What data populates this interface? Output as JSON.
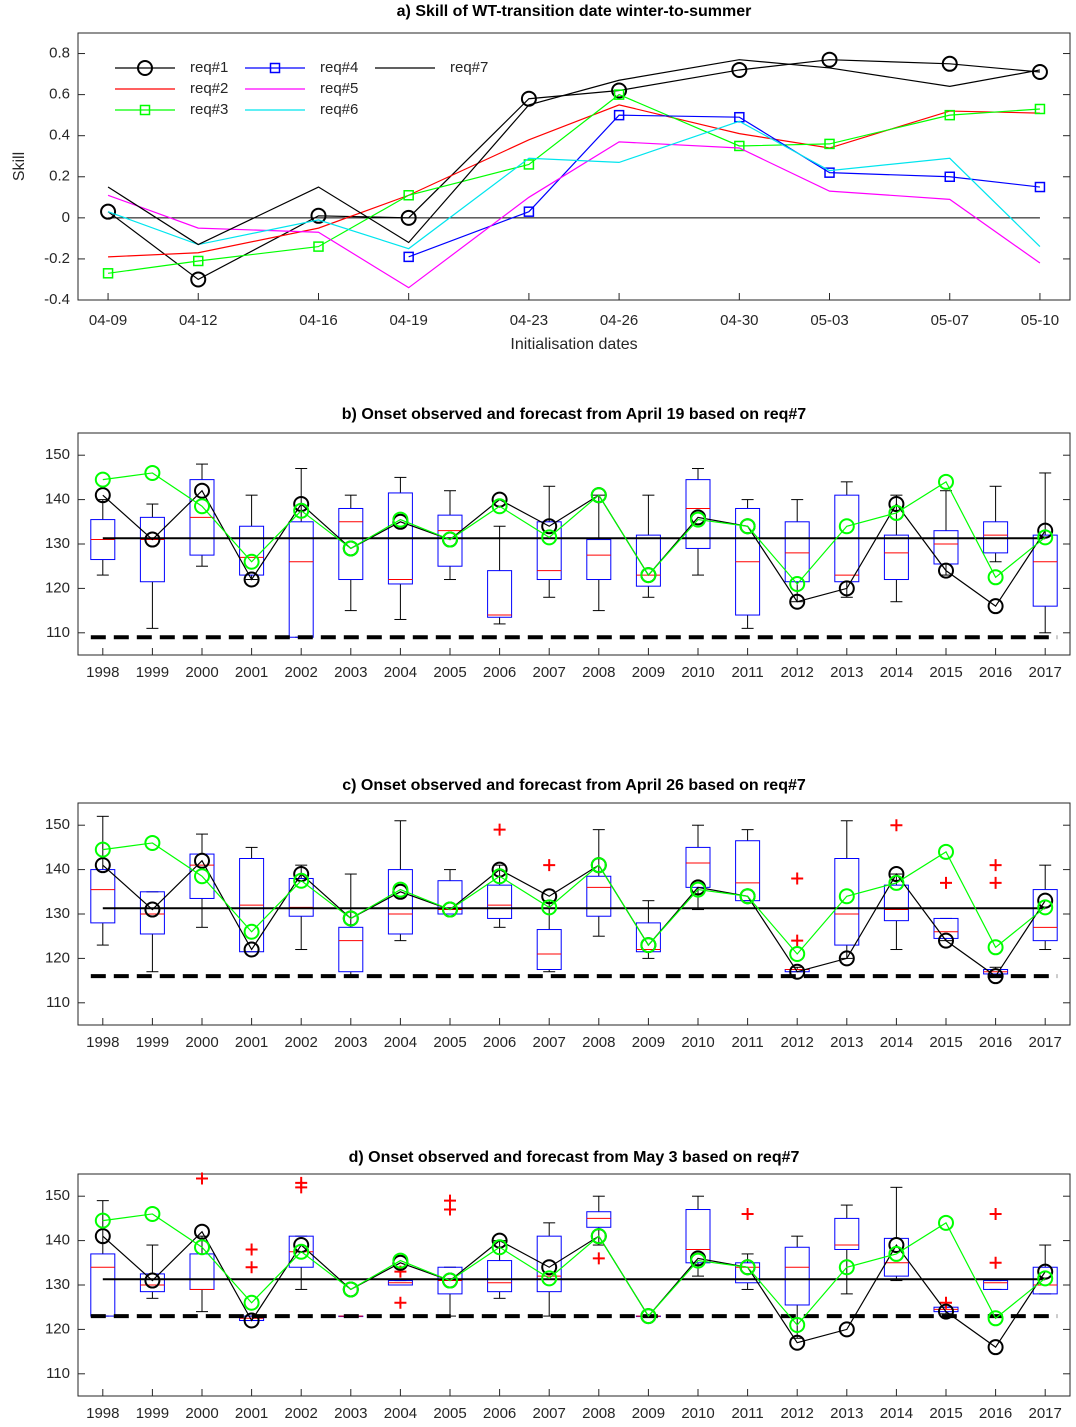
{
  "chart_data": [
    {
      "type": "line",
      "title": "a) Skill of WT-transition date winter-to-summer",
      "xlabel": "Initialisation dates",
      "ylabel": "Skill",
      "x": [
        "04-09",
        "04-12",
        "04-16",
        "04-19",
        "04-23",
        "04-26",
        "04-30",
        "05-03",
        "05-07",
        "05-10"
      ],
      "ylim": [
        -0.4,
        0.9
      ],
      "yticks": [
        -0.4,
        -0.2,
        0,
        0.2,
        0.4,
        0.6,
        0.8
      ],
      "grid": false,
      "legend": "upper left",
      "reference_line": 0,
      "series": [
        {
          "name": "req#1",
          "color": "#000000",
          "marker": "o",
          "values": [
            0.03,
            -0.3,
            0.01,
            0.0,
            0.58,
            0.62,
            0.72,
            0.77,
            0.75,
            0.71
          ]
        },
        {
          "name": "req#2",
          "color": "#ff0000",
          "marker": "none",
          "values": [
            -0.19,
            -0.17,
            -0.05,
            0.11,
            0.38,
            0.55,
            0.41,
            0.34,
            0.52,
            0.51
          ]
        },
        {
          "name": "req#3",
          "color": "#00ff00",
          "marker": "s",
          "values": [
            -0.27,
            -0.21,
            -0.14,
            0.11,
            0.26,
            0.6,
            0.35,
            0.36,
            0.5,
            0.53
          ]
        },
        {
          "name": "req#4",
          "color": "#0000ff",
          "marker": "s",
          "values": [
            null,
            null,
            null,
            -0.19,
            0.03,
            0.5,
            0.49,
            0.22,
            0.2,
            0.15
          ]
        },
        {
          "name": "req#5",
          "color": "#ff00ff",
          "marker": "none",
          "values": [
            0.11,
            -0.05,
            -0.07,
            -0.34,
            0.1,
            0.37,
            0.34,
            0.13,
            0.09,
            -0.22
          ]
        },
        {
          "name": "req#6",
          "color": "#00e5ee",
          "marker": "none",
          "values": [
            0.03,
            -0.13,
            -0.01,
            -0.15,
            0.29,
            0.27,
            0.47,
            0.23,
            0.29,
            -0.14
          ]
        },
        {
          "name": "req#7",
          "color": "#000000",
          "marker": "none",
          "values": [
            0.15,
            -0.13,
            0.15,
            -0.12,
            0.55,
            0.67,
            0.77,
            0.73,
            0.64,
            0.72
          ]
        }
      ]
    },
    {
      "type": "box",
      "title": "b) Onset observed and forecast from April 19 based on req#7",
      "categories": [
        "1998",
        "1999",
        "2000",
        "2001",
        "2002",
        "2003",
        "2004",
        "2005",
        "2006",
        "2007",
        "2008",
        "2009",
        "2010",
        "2011",
        "2012",
        "2013",
        "2014",
        "2015",
        "2016",
        "2017"
      ],
      "ylim": [
        105,
        155
      ],
      "yticks": [
        110,
        120,
        130,
        140,
        150
      ],
      "grid": false,
      "box_color": "#0000ff",
      "median_color": "#ff0000",
      "flier_color": "#ff0000",
      "boxes": [
        {
          "whislo": 123,
          "q1": 126.5,
          "med": 131,
          "q3": 135.5,
          "whishi": 140,
          "fliers": []
        },
        {
          "whislo": 111,
          "q1": 121.5,
          "med": 131,
          "q3": 136,
          "whishi": 139,
          "fliers": []
        },
        {
          "whislo": 125,
          "q1": 127.5,
          "med": 136,
          "q3": 144.5,
          "whishi": 148,
          "fliers": []
        },
        {
          "whislo": 122,
          "q1": 123,
          "med": 127,
          "q3": 134,
          "whishi": 141,
          "fliers": []
        },
        {
          "whislo": 109,
          "q1": 109,
          "med": 126,
          "q3": 135,
          "whishi": 147,
          "fliers": []
        },
        {
          "whislo": 115,
          "q1": 122,
          "med": 135,
          "q3": 138,
          "whishi": 141,
          "fliers": []
        },
        {
          "whislo": 113,
          "q1": 121,
          "med": 122,
          "q3": 141.5,
          "whishi": 145,
          "fliers": []
        },
        {
          "whislo": 122,
          "q1": 125,
          "med": 133,
          "q3": 136.5,
          "whishi": 142,
          "fliers": []
        },
        {
          "whislo": 112,
          "q1": 113.5,
          "med": 114,
          "q3": 124,
          "whishi": 134,
          "fliers": []
        },
        {
          "whislo": 118,
          "q1": 122,
          "med": 124,
          "q3": 135,
          "whishi": 143,
          "fliers": []
        },
        {
          "whislo": 115,
          "q1": 122,
          "med": 127.5,
          "q3": 131,
          "whishi": 141,
          "fliers": []
        },
        {
          "whislo": 118,
          "q1": 120.5,
          "med": 123,
          "q3": 132,
          "whishi": 141,
          "fliers": []
        },
        {
          "whislo": 123,
          "q1": 129,
          "med": 138,
          "q3": 144.5,
          "whishi": 147,
          "fliers": []
        },
        {
          "whislo": 111,
          "q1": 114,
          "med": 126,
          "q3": 138,
          "whishi": 140,
          "fliers": []
        },
        {
          "whislo": 117,
          "q1": 121.5,
          "med": 128,
          "q3": 135,
          "whishi": 140,
          "fliers": []
        },
        {
          "whislo": 118,
          "q1": 121.5,
          "med": 123,
          "q3": 141,
          "whishi": 144,
          "fliers": []
        },
        {
          "whislo": 117,
          "q1": 122,
          "med": 128,
          "q3": 132,
          "whishi": 141,
          "fliers": []
        },
        {
          "whislo": 123,
          "q1": 125.5,
          "med": 130,
          "q3": 133,
          "whishi": 142,
          "fliers": []
        },
        {
          "whislo": 126,
          "q1": 128,
          "med": 132,
          "q3": 135,
          "whishi": 143,
          "fliers": []
        },
        {
          "whislo": 110,
          "q1": 116,
          "med": 126,
          "q3": 132,
          "whishi": 146,
          "fliers": []
        }
      ],
      "lines": [
        {
          "color": "#000000",
          "values": [
            141,
            131,
            142,
            122,
            139,
            129,
            135,
            131,
            140,
            134,
            141,
            123,
            136,
            134,
            117,
            120,
            139,
            124,
            116,
            133
          ]
        },
        {
          "color": "#00ff00",
          "values": [
            144.5,
            146,
            138.5,
            126,
            137.5,
            129,
            135.5,
            131,
            138.5,
            131.5,
            141,
            123,
            135.5,
            134,
            121,
            134,
            137,
            144,
            122.5,
            131.5
          ]
        }
      ],
      "reference_lines": [
        {
          "value": 131.3,
          "style": "solid"
        },
        {
          "value": 109,
          "style": "dashed"
        }
      ]
    },
    {
      "type": "box",
      "title": "c) Onset observed and forecast from April 26 based on req#7",
      "categories": [
        "1998",
        "1999",
        "2000",
        "2001",
        "2002",
        "2003",
        "2004",
        "2005",
        "2006",
        "2007",
        "2008",
        "2009",
        "2010",
        "2011",
        "2012",
        "2013",
        "2014",
        "2015",
        "2016",
        "2017"
      ],
      "ylim": [
        105,
        155
      ],
      "yticks": [
        110,
        120,
        130,
        140,
        150
      ],
      "grid": false,
      "box_color": "#0000ff",
      "median_color": "#ff0000",
      "flier_color": "#ff0000",
      "boxes": [
        {
          "whislo": 123,
          "q1": 128,
          "med": 135.5,
          "q3": 140,
          "whishi": 152,
          "fliers": []
        },
        {
          "whislo": 117,
          "q1": 125.5,
          "med": 130,
          "q3": 135,
          "whishi": 135,
          "fliers": []
        },
        {
          "whislo": 127,
          "q1": 133.5,
          "med": 141,
          "q3": 143.5,
          "whishi": 148,
          "fliers": []
        },
        {
          "whislo": 121.5,
          "q1": 121.5,
          "med": 132,
          "q3": 142.5,
          "whishi": 145,
          "fliers": []
        },
        {
          "whislo": 122,
          "q1": 129.5,
          "med": 131.5,
          "q3": 138,
          "whishi": 141,
          "fliers": []
        },
        {
          "whislo": 116,
          "q1": 117,
          "med": 124,
          "q3": 127,
          "whishi": 139,
          "fliers": []
        },
        {
          "whislo": 124,
          "q1": 125.5,
          "med": 130,
          "q3": 140,
          "whishi": 151,
          "fliers": []
        },
        {
          "whislo": 130,
          "q1": 130,
          "med": 131,
          "q3": 137.5,
          "whishi": 140,
          "fliers": []
        },
        {
          "whislo": 127,
          "q1": 129,
          "med": 132,
          "q3": 136.5,
          "whishi": 141,
          "fliers": [
            149
          ]
        },
        {
          "whislo": 117,
          "q1": 117.5,
          "med": 121,
          "q3": 126.5,
          "whishi": 133,
          "fliers": [
            141
          ]
        },
        {
          "whislo": 125,
          "q1": 129.5,
          "med": 136,
          "q3": 138.5,
          "whishi": 149,
          "fliers": []
        },
        {
          "whislo": 120,
          "q1": 121.5,
          "med": 122,
          "q3": 128,
          "whishi": 133,
          "fliers": []
        },
        {
          "whislo": 131,
          "q1": 136,
          "med": 141.5,
          "q3": 145,
          "whishi": 150,
          "fliers": []
        },
        {
          "whislo": 133,
          "q1": 133,
          "med": 137,
          "q3": 146.5,
          "whishi": 149,
          "fliers": []
        },
        {
          "whislo": 117,
          "q1": 117,
          "med": 117.5,
          "q3": 117.5,
          "whishi": 118,
          "fliers": [
            124,
            138
          ]
        },
        {
          "whislo": 120,
          "q1": 123,
          "med": 130,
          "q3": 142.5,
          "whishi": 151,
          "fliers": []
        },
        {
          "whislo": 122,
          "q1": 128.5,
          "med": 131,
          "q3": 136.5,
          "whishi": 139,
          "fliers": [
            150
          ]
        },
        {
          "whislo": 124,
          "q1": 124.5,
          "med": 126,
          "q3": 129,
          "whishi": 129,
          "fliers": [
            137
          ]
        },
        {
          "whislo": 116,
          "q1": 116.5,
          "med": 117,
          "q3": 117.5,
          "whishi": 118,
          "fliers": [
            137,
            141
          ]
        },
        {
          "whislo": 122,
          "q1": 124,
          "med": 127,
          "q3": 135.5,
          "whishi": 141,
          "fliers": []
        }
      ],
      "lines": [
        {
          "color": "#000000",
          "values": [
            141,
            131,
            142,
            122,
            139,
            129,
            135,
            131,
            140,
            134,
            141,
            123,
            136,
            134,
            117,
            120,
            139,
            124,
            116,
            133
          ]
        },
        {
          "color": "#00ff00",
          "values": [
            144.5,
            146,
            138.5,
            126,
            137.5,
            129,
            135.5,
            131,
            138.5,
            131.5,
            141,
            123,
            135.5,
            134,
            121,
            134,
            137,
            144,
            122.5,
            131.5
          ]
        }
      ],
      "reference_lines": [
        {
          "value": 131.3,
          "style": "solid"
        },
        {
          "value": 116,
          "style": "dashed"
        }
      ]
    },
    {
      "type": "box",
      "title": "d) Onset observed and forecast from May 3 based on req#7",
      "categories": [
        "1998",
        "1999",
        "2000",
        "2001",
        "2002",
        "2003",
        "2004",
        "2005",
        "2006",
        "2007",
        "2008",
        "2009",
        "2010",
        "2011",
        "2012",
        "2013",
        "2014",
        "2015",
        "2016",
        "2017"
      ],
      "ylim": [
        105,
        155
      ],
      "yticks": [
        110,
        120,
        130,
        140,
        150
      ],
      "grid": false,
      "box_color": "#0000ff",
      "median_color": "#ff0000",
      "flier_color": "#ff0000",
      "boxes": [
        {
          "whislo": 123,
          "q1": 123,
          "med": 134,
          "q3": 137,
          "whishi": 149,
          "fliers": []
        },
        {
          "whislo": 127,
          "q1": 128.5,
          "med": 130,
          "q3": 132.5,
          "whishi": 139,
          "fliers": []
        },
        {
          "whislo": 124,
          "q1": 129,
          "med": 129,
          "q3": 137,
          "whishi": 141,
          "fliers": [
            154
          ]
        },
        {
          "whislo": 122,
          "q1": 122,
          "med": 122.5,
          "q3": 123,
          "whishi": 123,
          "fliers": [
            134,
            138
          ]
        },
        {
          "whislo": 129,
          "q1": 134,
          "med": 137.5,
          "q3": 141,
          "whishi": 141,
          "fliers": [
            152,
            153
          ]
        },
        {
          "whislo": 123,
          "q1": 123,
          "med": 123,
          "q3": 123,
          "whishi": 123,
          "fliers": []
        },
        {
          "whislo": 130,
          "q1": 130,
          "med": 130.5,
          "q3": 131,
          "whishi": 131,
          "fliers": [
            126,
            133
          ]
        },
        {
          "whislo": 123,
          "q1": 128,
          "med": 131,
          "q3": 134,
          "whishi": 134,
          "fliers": [
            147,
            149
          ]
        },
        {
          "whislo": 127,
          "q1": 128.5,
          "med": 130.5,
          "q3": 135.5,
          "whishi": 140,
          "fliers": []
        },
        {
          "whislo": 123,
          "q1": 128.5,
          "med": 132,
          "q3": 141,
          "whishi": 144,
          "fliers": []
        },
        {
          "whislo": 139,
          "q1": 143,
          "med": 145,
          "q3": 146.5,
          "whishi": 150,
          "fliers": [
            136
          ]
        },
        {
          "whislo": 123,
          "q1": 123,
          "med": 123,
          "q3": 123,
          "whishi": 123,
          "fliers": []
        },
        {
          "whislo": 132,
          "q1": 135,
          "med": 138,
          "q3": 147,
          "whishi": 150,
          "fliers": []
        },
        {
          "whislo": 129,
          "q1": 130.5,
          "med": 134,
          "q3": 135,
          "whishi": 137,
          "fliers": [
            146
          ]
        },
        {
          "whislo": 118,
          "q1": 125.5,
          "med": 134,
          "q3": 138.5,
          "whishi": 141,
          "fliers": []
        },
        {
          "whislo": 128,
          "q1": 138,
          "med": 139,
          "q3": 145,
          "whishi": 148,
          "fliers": []
        },
        {
          "whislo": 131,
          "q1": 132,
          "med": 135,
          "q3": 140.5,
          "whishi": 152,
          "fliers": []
        },
        {
          "whislo": 123.5,
          "q1": 124,
          "med": 124.5,
          "q3": 125,
          "whishi": 125,
          "fliers": [
            126
          ]
        },
        {
          "whislo": 129,
          "q1": 129,
          "med": 130.5,
          "q3": 131,
          "whishi": 131,
          "fliers": [
            135,
            146
          ]
        },
        {
          "whislo": 128,
          "q1": 128,
          "med": 130,
          "q3": 134,
          "whishi": 139,
          "fliers": []
        }
      ],
      "lines": [
        {
          "color": "#000000",
          "values": [
            141,
            131,
            142,
            122,
            139,
            129,
            135,
            131,
            140,
            134,
            141,
            123,
            136,
            134,
            117,
            120,
            139,
            124,
            116,
            133
          ]
        },
        {
          "color": "#00ff00",
          "values": [
            144.5,
            146,
            138.5,
            126,
            137.5,
            129,
            135.5,
            131,
            138.5,
            131.5,
            141,
            123,
            135.5,
            134,
            121,
            134,
            137,
            144,
            122.5,
            131.5
          ]
        }
      ],
      "reference_lines": [
        {
          "value": 131.3,
          "style": "solid"
        },
        {
          "value": 123,
          "style": "dashed"
        }
      ]
    }
  ]
}
